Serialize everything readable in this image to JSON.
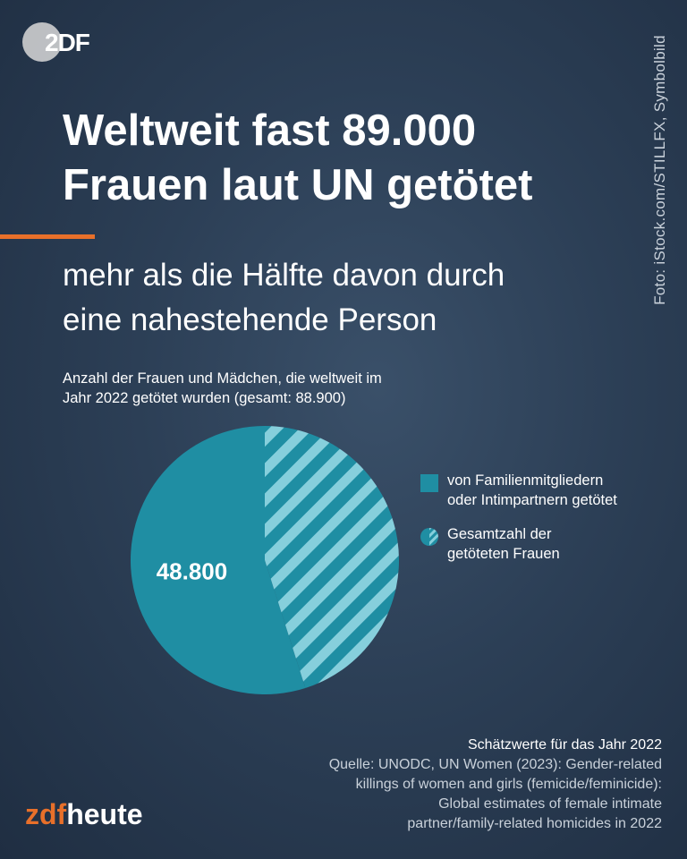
{
  "logo": {
    "text": "2DF"
  },
  "photo_credit": "Foto: iStock.com/STILLFX, Symbolbild",
  "headline": [
    "Weltweit fast 89.000",
    "Frauen laut UN getötet"
  ],
  "subheadline": [
    "mehr als die Hälfte davon durch",
    "eine nahestehende Person"
  ],
  "chart_description": [
    "Anzahl der Frauen und Mädchen, die weltweit im",
    "Jahr 2022 getötet wurden (gesamt: 88.900)"
  ],
  "colors": {
    "solid_teal": "#1f8ea3",
    "stripe_light": "#86cfdc",
    "accent": "#e8702a",
    "background": "#2c3f56"
  },
  "chart_data": {
    "type": "pie",
    "total": 88900,
    "slices": [
      {
        "label": "von Familienmitgliedern oder Intimpartnern getötet",
        "value": 48800,
        "display": "48.800",
        "style": "solid"
      },
      {
        "label": "Gesamtzahl der getöteten Frauen",
        "value": 40100,
        "display": "",
        "style": "striped"
      }
    ],
    "legend_placement": "right"
  },
  "legend": [
    {
      "lines": [
        "von Familienmitgliedern",
        "oder Intimpartnern getötet"
      ],
      "icon": "solid-square"
    },
    {
      "lines": [
        "Gesamtzahl der",
        "getöteten Frauen"
      ],
      "icon": "half-striped-circle"
    }
  ],
  "source": {
    "note": "Schätzwerte für das Jahr 2022",
    "lines": [
      "Quelle: UNODC, UN Women (2023): Gender-related",
      "killings of women and girls (femicide/feminicide):",
      "Global estimates of female intimate",
      "partner/family-related homicides in 2022"
    ]
  },
  "brand": {
    "part1": "zdf",
    "part2": "heute"
  }
}
